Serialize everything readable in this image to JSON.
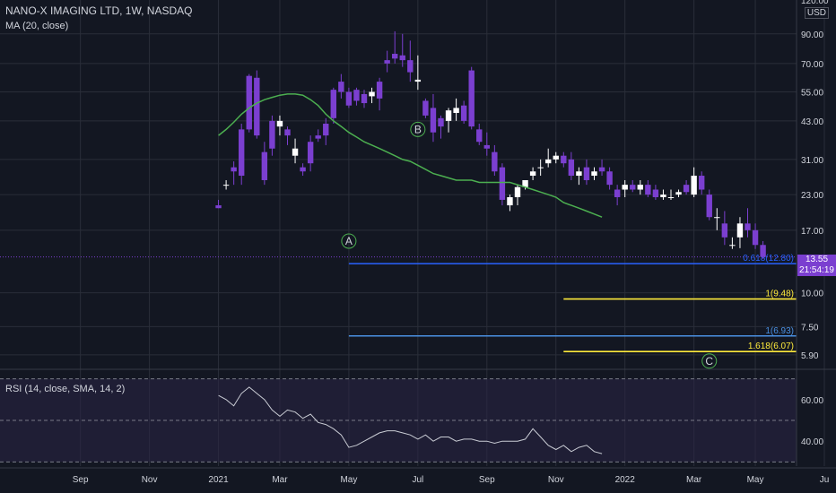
{
  "header": {
    "title": "NANO-X IMAGING LTD, 1W, NASDAQ",
    "ma_label": "MA (20, close)",
    "currency": "USD"
  },
  "rsi_panel": {
    "label": "RSI (14, close, SMA, 14, 2)"
  },
  "last_price": {
    "value": "13.55",
    "countdown": "21:54:19"
  },
  "colors": {
    "background": "#131722",
    "candle_up": "#ffffff",
    "candle_down": "#7b3fd0",
    "ma_line": "#4caf50",
    "fib_blue": "#2962ff",
    "fib_light_blue": "#4a90e2",
    "fib_yellow": "#ffeb3b",
    "rsi_line": "#c9ccd4",
    "grid": "#2a2e39"
  },
  "chart_data": {
    "type": "candlestick",
    "title": "NANO-X IMAGING LTD, 1W, NASDAQ",
    "y_scale": "log",
    "ylim": [
      5.3,
      120
    ],
    "y_ticks": [
      "120.00",
      "90.00",
      "70.00",
      "55.00",
      "43.00",
      "31.00",
      "23.00",
      "17.00",
      "10.00",
      "7.50",
      "5.90"
    ],
    "y_tick_values": [
      120,
      90,
      70,
      55,
      43,
      31,
      23,
      17,
      10,
      7.5,
      5.9
    ],
    "x_ticks": [
      "Sep",
      "Nov",
      "2021",
      "Mar",
      "May",
      "Jul",
      "Sep",
      "Nov",
      "2022",
      "Mar",
      "May",
      "Ju"
    ],
    "x_tick_index": [
      3,
      12,
      21,
      29,
      38,
      47,
      56,
      65,
      74,
      83,
      91,
      100
    ],
    "candles": [
      [
        21,
        22,
        20.5,
        20.5
      ],
      [
        25,
        26,
        24,
        25
      ],
      [
        29,
        30.5,
        25,
        28
      ],
      [
        40,
        42,
        25,
        27
      ],
      [
        63,
        64,
        39,
        40
      ],
      [
        62,
        66,
        37,
        38
      ],
      [
        33,
        36,
        25,
        26
      ],
      [
        43,
        45,
        32,
        34
      ],
      [
        41,
        45,
        38,
        43
      ],
      [
        40,
        41,
        35,
        38
      ],
      [
        32,
        37,
        30,
        34
      ],
      [
        29,
        30,
        27,
        28
      ],
      [
        36,
        38,
        28,
        30
      ],
      [
        38,
        40,
        36,
        37
      ],
      [
        42,
        44,
        35,
        38
      ],
      [
        56,
        57,
        42,
        44
      ],
      [
        60,
        64,
        52,
        55
      ],
      [
        55,
        57,
        48,
        49
      ],
      [
        56,
        57,
        49,
        51
      ],
      [
        54,
        56,
        48,
        50
      ],
      [
        53,
        57,
        50,
        55
      ],
      [
        60,
        62,
        47,
        52
      ],
      [
        72,
        78,
        65,
        70
      ],
      [
        76,
        92,
        70,
        73
      ],
      [
        75,
        90,
        68,
        72
      ],
      [
        72,
        85,
        60,
        65
      ],
      [
        60,
        75,
        56,
        61
      ],
      [
        51,
        52,
        44,
        45
      ],
      [
        48,
        54,
        36,
        39
      ],
      [
        44,
        45,
        37,
        41
      ],
      [
        43,
        48,
        39,
        47
      ],
      [
        46,
        52,
        43,
        48
      ],
      [
        49,
        51,
        42,
        43
      ],
      [
        66,
        68,
        40,
        41
      ],
      [
        40,
        42,
        35,
        36
      ],
      [
        35,
        39,
        32,
        34
      ],
      [
        33,
        35,
        27,
        28
      ],
      [
        29,
        30,
        21,
        22
      ],
      [
        21,
        23,
        20,
        22.5
      ],
      [
        22.5,
        25,
        21,
        24.5
      ],
      [
        24.5,
        26,
        24,
        26
      ],
      [
        27,
        29,
        26,
        28
      ],
      [
        29,
        31,
        27,
        29
      ],
      [
        30,
        34,
        29,
        31
      ],
      [
        31,
        33,
        30,
        32
      ],
      [
        32,
        33,
        29,
        30
      ],
      [
        31,
        33,
        26,
        27
      ],
      [
        27,
        29,
        25,
        28
      ],
      [
        29,
        31,
        25,
        26
      ],
      [
        27,
        29,
        26,
        28
      ],
      [
        29,
        31,
        27,
        28
      ],
      [
        28,
        29,
        24,
        25
      ],
      [
        24,
        25,
        21,
        22.5
      ],
      [
        24,
        26,
        22.5,
        25
      ],
      [
        25,
        26,
        23.5,
        24
      ],
      [
        24,
        26,
        23,
        25
      ],
      [
        25,
        26,
        22.5,
        23
      ],
      [
        24,
        25,
        22,
        22.5
      ],
      [
        22.5,
        24,
        22,
        23
      ],
      [
        22.5,
        24,
        22,
        22.5
      ],
      [
        23,
        24,
        22.5,
        23.5
      ],
      [
        25,
        26,
        23,
        23.5
      ],
      [
        23,
        29,
        22.5,
        27
      ],
      [
        27,
        28,
        23,
        24
      ],
      [
        23,
        24,
        18.5,
        19
      ],
      [
        19,
        20.5,
        17,
        19
      ],
      [
        18,
        20,
        15,
        16
      ],
      [
        15,
        16,
        14.5,
        15
      ],
      [
        16,
        19,
        14.6,
        18
      ],
      [
        18,
        20.5,
        16,
        17
      ],
      [
        17,
        18,
        14.5,
        15
      ],
      [
        15,
        15.5,
        13.3,
        13.55
      ]
    ],
    "ma20": [
      [
        21,
        38
      ],
      [
        22,
        40
      ],
      [
        23,
        42.5
      ],
      [
        24,
        45.5
      ],
      [
        25,
        48
      ],
      [
        26,
        50
      ],
      [
        27,
        51.5
      ],
      [
        28,
        52.5
      ],
      [
        29,
        53.5
      ],
      [
        30,
        54
      ],
      [
        31,
        54
      ],
      [
        32,
        53.5
      ],
      [
        33,
        51.5
      ],
      [
        34,
        49
      ],
      [
        35,
        45.5
      ],
      [
        36,
        43
      ],
      [
        37,
        41
      ],
      [
        38,
        39
      ],
      [
        39,
        37.5
      ],
      [
        40,
        36
      ],
      [
        41,
        35
      ],
      [
        42,
        34
      ],
      [
        43,
        33
      ],
      [
        44,
        32
      ],
      [
        45,
        31
      ],
      [
        46,
        30.5
      ],
      [
        47,
        29.5
      ],
      [
        48,
        28.5
      ],
      [
        49,
        27.5
      ],
      [
        50,
        27
      ],
      [
        51,
        26.5
      ],
      [
        52,
        26
      ],
      [
        53,
        26
      ],
      [
        54,
        26
      ],
      [
        55,
        25.5
      ],
      [
        56,
        25.5
      ],
      [
        57,
        25.5
      ],
      [
        58,
        25.5
      ],
      [
        59,
        25.5
      ],
      [
        60,
        25
      ],
      [
        61,
        24.5
      ],
      [
        62,
        24
      ],
      [
        63,
        23.5
      ],
      [
        64,
        23
      ],
      [
        65,
        22.5
      ],
      [
        66,
        21.5
      ],
      [
        67,
        21
      ],
      [
        68,
        20.5
      ],
      [
        69,
        20
      ],
      [
        70,
        19.5
      ],
      [
        71,
        19
      ]
    ],
    "wave_labels": [
      {
        "text": "A",
        "index": 38,
        "value": 15.5
      },
      {
        "text": "B",
        "index": 47,
        "value": 40
      },
      {
        "text": "C",
        "index": 85,
        "value": 5.6
      }
    ],
    "fib_levels": [
      {
        "label": "0.618(12.80)",
        "value": 12.8,
        "start_index": 38,
        "color": "fib_blue"
      },
      {
        "label": "1(9.48)",
        "value": 9.48,
        "start_index": 66,
        "color": "fib_yellow"
      },
      {
        "label": "1(6.93)",
        "value": 6.93,
        "start_index": 38,
        "color": "fib_light_blue"
      },
      {
        "label": "1.618(6.07)",
        "value": 6.07,
        "start_index": 66,
        "color": "fib_yellow"
      }
    ],
    "rsi": {
      "ylim": [
        28,
        72
      ],
      "y_ticks": [
        "60.00",
        "40.00"
      ],
      "y_tick_values": [
        60,
        40
      ],
      "bands": [
        70,
        50,
        30
      ],
      "values": [
        [
          21,
          62
        ],
        [
          22,
          60
        ],
        [
          23,
          57
        ],
        [
          24,
          63
        ],
        [
          25,
          66
        ],
        [
          26,
          63
        ],
        [
          27,
          60
        ],
        [
          28,
          55
        ],
        [
          29,
          52
        ],
        [
          30,
          55
        ],
        [
          31,
          54
        ],
        [
          32,
          51
        ],
        [
          33,
          53
        ],
        [
          34,
          49
        ],
        [
          35,
          48
        ],
        [
          36,
          46
        ],
        [
          37,
          43
        ],
        [
          38,
          37
        ],
        [
          39,
          38
        ],
        [
          40,
          40
        ],
        [
          41,
          42
        ],
        [
          42,
          44
        ],
        [
          43,
          45
        ],
        [
          44,
          45
        ],
        [
          45,
          44
        ],
        [
          46,
          43
        ],
        [
          47,
          41
        ],
        [
          48,
          43
        ],
        [
          49,
          40
        ],
        [
          50,
          42
        ],
        [
          51,
          42
        ],
        [
          52,
          40
        ],
        [
          53,
          41
        ],
        [
          54,
          41
        ],
        [
          55,
          40
        ],
        [
          56,
          40
        ],
        [
          57,
          39
        ],
        [
          58,
          40
        ],
        [
          59,
          40
        ],
        [
          60,
          40
        ],
        [
          61,
          41
        ],
        [
          62,
          46
        ],
        [
          63,
          42
        ],
        [
          64,
          38
        ],
        [
          65,
          36
        ],
        [
          66,
          38
        ],
        [
          67,
          35
        ],
        [
          68,
          37
        ],
        [
          69,
          38
        ],
        [
          70,
          35
        ],
        [
          71,
          34
        ]
      ]
    }
  }
}
